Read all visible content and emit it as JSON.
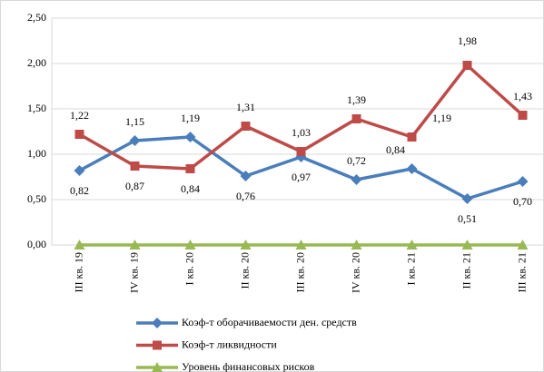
{
  "chart_data": {
    "type": "line",
    "categories": [
      "III кв. 19",
      "IV кв. 19",
      "I кв. 20",
      "II кв. 20",
      "III кв. 20",
      "IV кв. 20",
      "I кв. 21",
      "II кв. 21",
      "III кв. 21"
    ],
    "series": [
      {
        "name": "Коэф-т оборачиваемости ден. средств",
        "color": "#4a7ebb",
        "marker": "diamond",
        "values": [
          0.82,
          1.15,
          1.19,
          0.76,
          0.97,
          0.72,
          0.84,
          0.51,
          0.7
        ],
        "value_labels": [
          "0,82",
          "1,15",
          "1,19",
          "0,76",
          "0,97",
          "0,72",
          "0,84",
          "0,51",
          "0,70"
        ]
      },
      {
        "name": "Коэф-т ликвидности",
        "color": "#be4b48",
        "marker": "square",
        "values": [
          1.22,
          0.87,
          0.84,
          1.31,
          1.03,
          1.39,
          1.19,
          1.98,
          1.43
        ],
        "value_labels": [
          "1,22",
          "0,87",
          "0,84",
          "1,31",
          "1,03",
          "1,39",
          "1,19",
          "1,98",
          "1,43"
        ]
      },
      {
        "name": "Уровень финансовых рисков",
        "color": "#98b954",
        "marker": "triangle",
        "values": [
          0,
          0,
          0,
          0,
          0,
          0,
          0,
          0,
          0
        ]
      }
    ],
    "ylim": [
      0,
      2.5
    ],
    "yticks": [
      {
        "value": 0,
        "label": "0,00"
      },
      {
        "value": 0.5,
        "label": "0,50"
      },
      {
        "value": 1,
        "label": "1,00"
      },
      {
        "value": 1.5,
        "label": "1,50"
      },
      {
        "value": 2,
        "label": "2,00"
      },
      {
        "value": 2.5,
        "label": "2,50"
      }
    ],
    "grid": true,
    "legend": "bottom"
  }
}
